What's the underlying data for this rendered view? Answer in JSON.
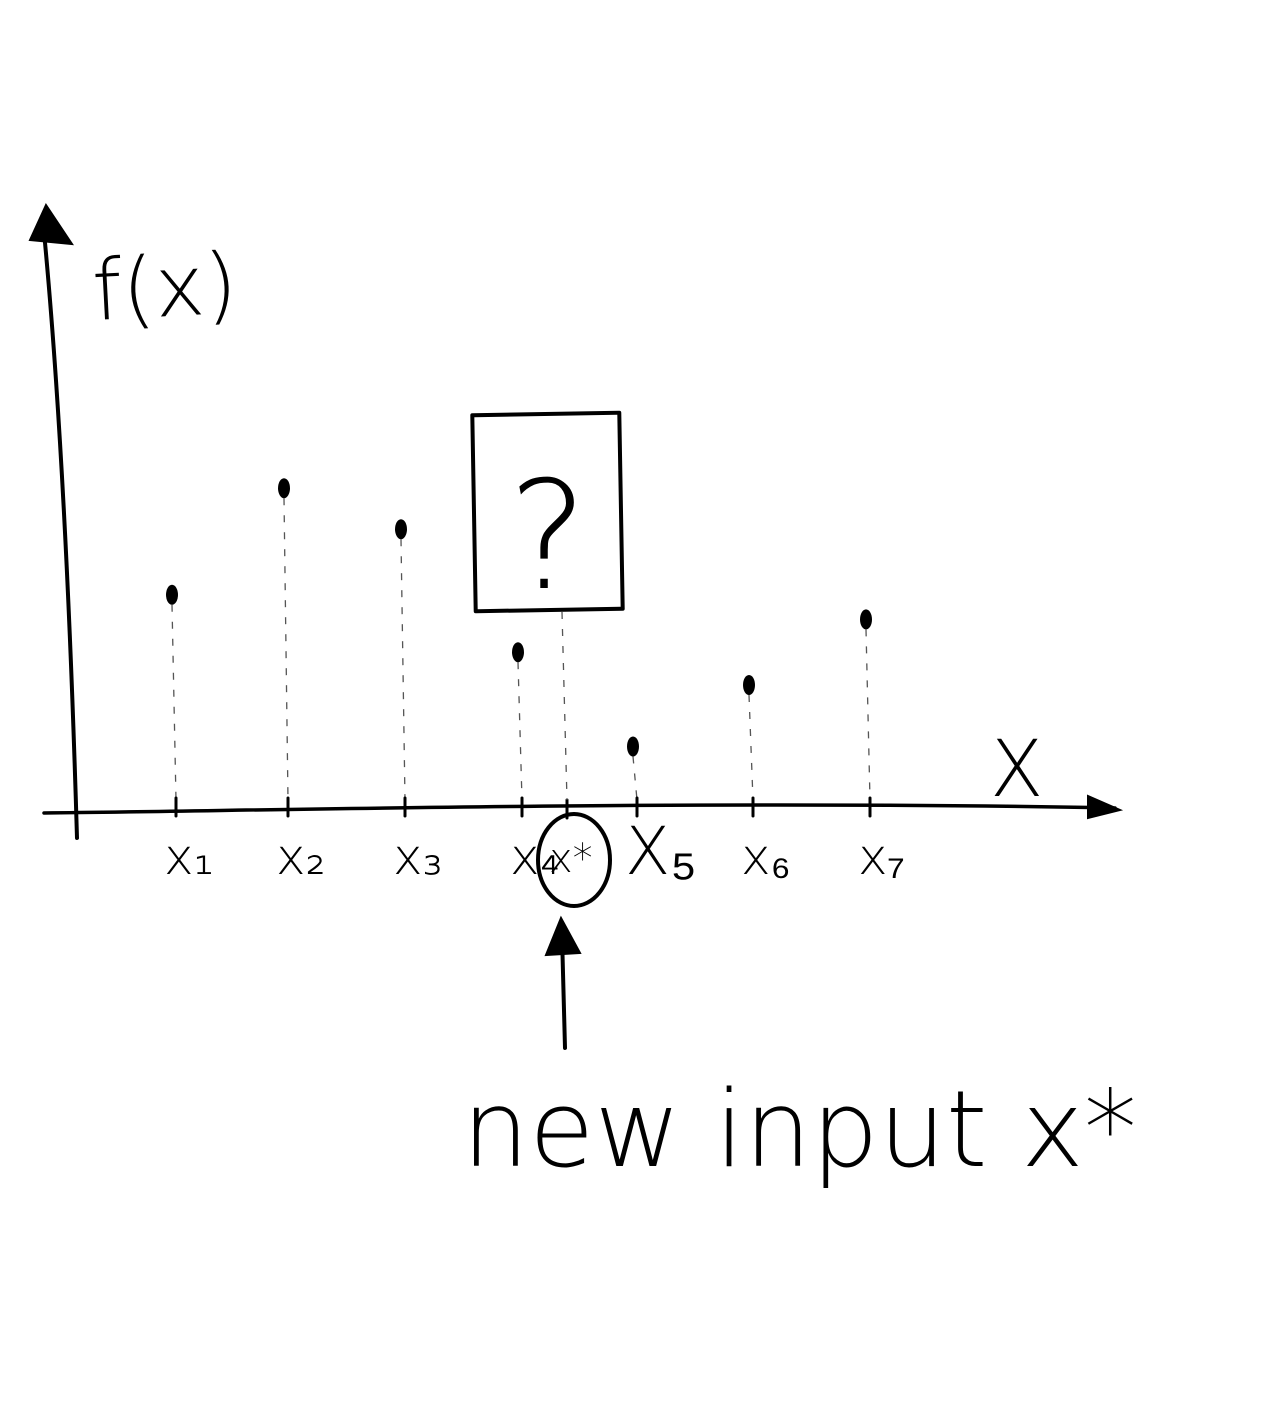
{
  "axes": {
    "y_label": "f(x)",
    "x_label": "X"
  },
  "points": [
    {
      "label": "x₁",
      "value": 0.52
    },
    {
      "label": "x₂",
      "value": 0.78
    },
    {
      "label": "x₃",
      "value": 0.68
    },
    {
      "label": "x₄",
      "value": 0.38
    },
    {
      "label": "X₅",
      "value": 0.15
    },
    {
      "label": "x₆",
      "value": 0.3
    },
    {
      "label": "x₇",
      "value": 0.46
    }
  ],
  "query": {
    "label": "x*",
    "box_text": "?",
    "annotation": "new input x*"
  }
}
